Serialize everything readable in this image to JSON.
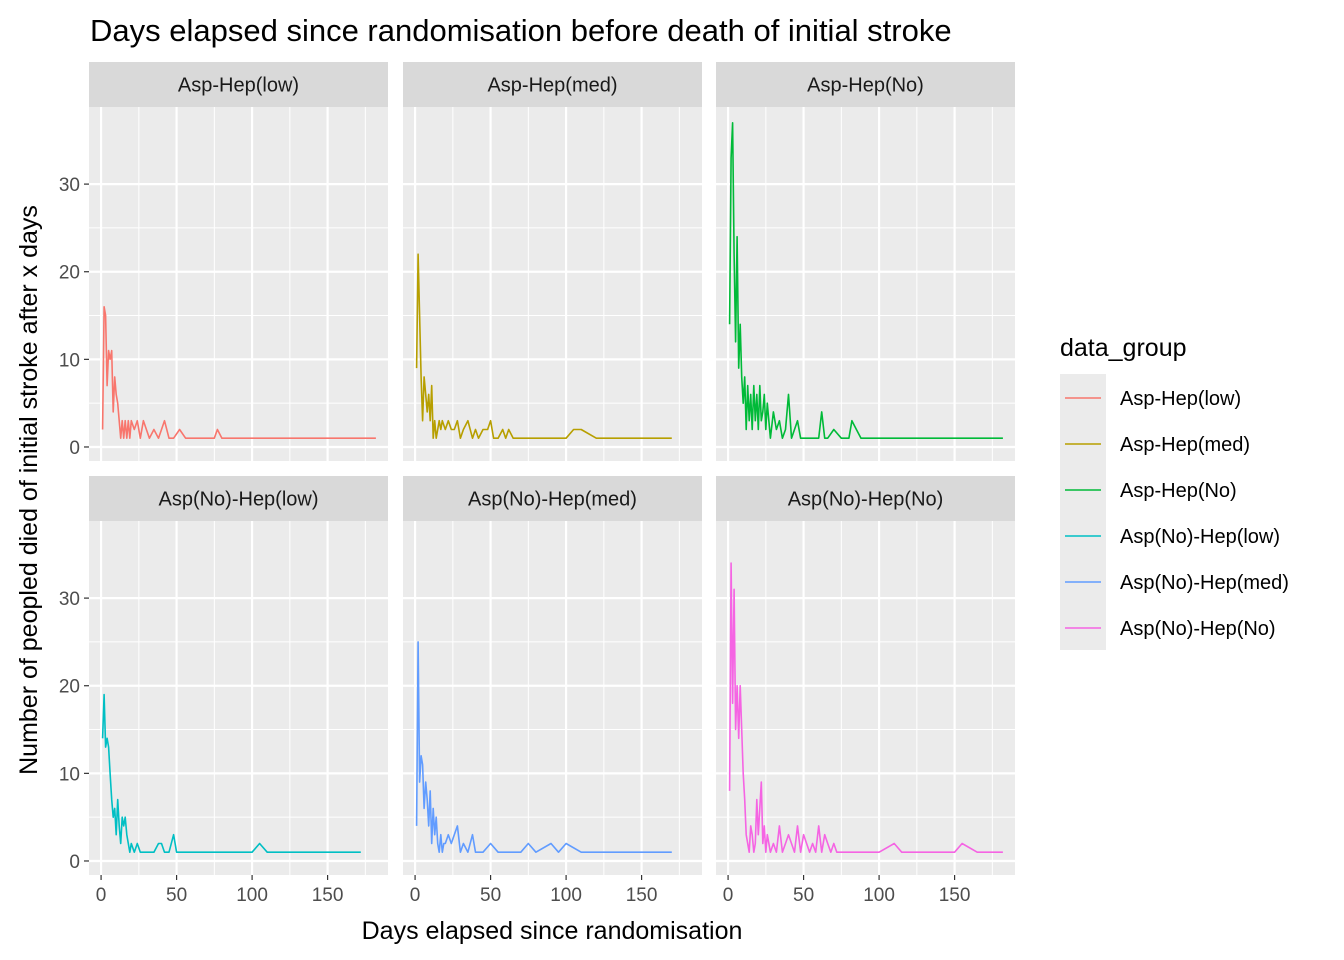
{
  "chart_data": {
    "type": "line",
    "title": "Days elapsed since randomisation before death of initial stroke",
    "xlabel": "Days elapsed since randomisation",
    "ylabel": "Number of peopled died of initial stroke after x days",
    "xlim": [
      -8,
      190
    ],
    "ylim": [
      -1.6,
      38.8
    ],
    "xticks": [
      0,
      50,
      100,
      150
    ],
    "yticks": [
      0,
      10,
      20,
      30
    ],
    "grid": true,
    "facet_rows": 2,
    "facet_cols": 3,
    "legend": {
      "title": "data_group",
      "position": "right"
    },
    "series": [
      {
        "name": "Asp-Hep(low)",
        "color": "#F8766D",
        "x": [
          1,
          2,
          3,
          4,
          5,
          6,
          7,
          8,
          9,
          10,
          11,
          12,
          13,
          14,
          15,
          16,
          17,
          18,
          19,
          20,
          22,
          24,
          26,
          28,
          30,
          32,
          35,
          38,
          42,
          45,
          48,
          52,
          56,
          60,
          65,
          70,
          75,
          77,
          80,
          90,
          100,
          120,
          140,
          160,
          182
        ],
        "y": [
          2,
          16,
          15,
          7,
          11,
          10,
          11,
          4,
          8,
          6,
          5,
          3,
          1,
          3,
          1,
          3,
          1,
          3,
          1,
          3,
          2,
          3,
          1,
          3,
          2,
          1,
          2,
          1,
          3,
          1,
          1,
          2,
          1,
          1,
          1,
          1,
          1,
          2,
          1,
          1,
          1,
          1,
          1,
          1,
          1
        ]
      },
      {
        "name": "Asp-Hep(med)",
        "color": "#B79F00",
        "x": [
          1,
          2,
          3,
          4,
          5,
          6,
          7,
          8,
          9,
          10,
          11,
          12,
          13,
          14,
          15,
          16,
          17,
          18,
          20,
          22,
          24,
          26,
          28,
          30,
          32,
          35,
          38,
          40,
          42,
          45,
          48,
          50,
          52,
          55,
          58,
          60,
          62,
          65,
          70,
          80,
          90,
          100,
          105,
          110,
          120,
          130,
          150,
          170
        ],
        "y": [
          9,
          22,
          15,
          8,
          3,
          8,
          6,
          4,
          6,
          3,
          7,
          1,
          3,
          1,
          2,
          3,
          2,
          3,
          2,
          3,
          2,
          2,
          3,
          1,
          2,
          3,
          1,
          2,
          1,
          2,
          2,
          3,
          1,
          1,
          2,
          1,
          2,
          1,
          1,
          1,
          1,
          1,
          2,
          2,
          1,
          1,
          1,
          1
        ]
      },
      {
        "name": "Asp-Hep(No)",
        "color": "#00BA38",
        "x": [
          1,
          2,
          3,
          4,
          5,
          6,
          7,
          8,
          9,
          10,
          11,
          12,
          13,
          14,
          15,
          16,
          17,
          18,
          19,
          20,
          21,
          22,
          23,
          24,
          25,
          26,
          28,
          30,
          32,
          34,
          36,
          38,
          40,
          42,
          44,
          46,
          48,
          50,
          55,
          60,
          62,
          64,
          66,
          70,
          75,
          80,
          82,
          85,
          88,
          90,
          100,
          120,
          140,
          160,
          182
        ],
        "y": [
          14,
          33,
          37,
          22,
          12,
          24,
          9,
          14,
          8,
          5,
          8,
          2,
          7,
          3,
          6,
          2,
          7,
          3,
          6,
          2,
          7,
          3,
          4,
          6,
          2,
          5,
          1,
          4,
          2,
          3,
          1,
          2,
          6,
          1,
          2,
          3,
          1,
          1,
          1,
          1,
          4,
          1,
          1,
          2,
          1,
          1,
          3,
          2,
          1,
          1,
          1,
          1,
          1,
          1,
          1
        ]
      },
      {
        "name": "Asp(No)-Hep(low)",
        "color": "#00BFC4",
        "x": [
          1,
          2,
          3,
          4,
          5,
          6,
          7,
          8,
          9,
          10,
          11,
          12,
          13,
          14,
          15,
          16,
          17,
          18,
          19,
          20,
          22,
          24,
          26,
          28,
          30,
          35,
          38,
          40,
          42,
          45,
          48,
          50,
          55,
          60,
          70,
          80,
          90,
          100,
          105,
          110,
          120,
          140,
          172
        ],
        "y": [
          14,
          19,
          13,
          14,
          13,
          10,
          7,
          5,
          6,
          3,
          7,
          4,
          2,
          5,
          4,
          5,
          3,
          2,
          1,
          2,
          1,
          2,
          1,
          1,
          1,
          1,
          2,
          2,
          1,
          1,
          3,
          1,
          1,
          1,
          1,
          1,
          1,
          1,
          2,
          1,
          1,
          1,
          1
        ]
      },
      {
        "name": "Asp(No)-Hep(med)",
        "color": "#619CFF",
        "x": [
          1,
          2,
          3,
          4,
          5,
          6,
          7,
          8,
          9,
          10,
          11,
          12,
          13,
          14,
          15,
          16,
          17,
          18,
          19,
          20,
          22,
          24,
          26,
          28,
          30,
          32,
          35,
          38,
          40,
          45,
          50,
          55,
          60,
          65,
          70,
          75,
          80,
          90,
          95,
          100,
          110,
          120,
          140,
          170
        ],
        "y": [
          4,
          25,
          9,
          12,
          11,
          6,
          9,
          7,
          4,
          8,
          2,
          6,
          3,
          5,
          2,
          1,
          3,
          1,
          2,
          2,
          3,
          2,
          3,
          4,
          1,
          2,
          1,
          3,
          1,
          1,
          2,
          1,
          1,
          1,
          1,
          2,
          1,
          2,
          1,
          2,
          1,
          1,
          1,
          1
        ]
      },
      {
        "name": "Asp(No)-Hep(No)",
        "color": "#F564E3",
        "x": [
          1,
          2,
          3,
          4,
          5,
          6,
          7,
          8,
          9,
          10,
          11,
          12,
          13,
          14,
          15,
          16,
          17,
          18,
          19,
          20,
          21,
          22,
          23,
          24,
          25,
          26,
          28,
          30,
          32,
          34,
          36,
          38,
          40,
          42,
          44,
          46,
          48,
          50,
          52,
          54,
          56,
          58,
          60,
          62,
          64,
          66,
          68,
          70,
          72,
          74,
          80,
          100,
          110,
          115,
          120,
          140,
          150,
          155,
          165,
          182
        ],
        "y": [
          8,
          34,
          18,
          31,
          15,
          20,
          14,
          20,
          15,
          10,
          7,
          3,
          2,
          1,
          4,
          3,
          1,
          2,
          7,
          3,
          6,
          9,
          2,
          4,
          1,
          3,
          1,
          2,
          1,
          4,
          1,
          2,
          3,
          2,
          1,
          4,
          1,
          3,
          2,
          1,
          2,
          1,
          4,
          1,
          3,
          2,
          1,
          2,
          1,
          1,
          1,
          1,
          2,
          1,
          1,
          1,
          1,
          2,
          1,
          1
        ]
      }
    ]
  }
}
